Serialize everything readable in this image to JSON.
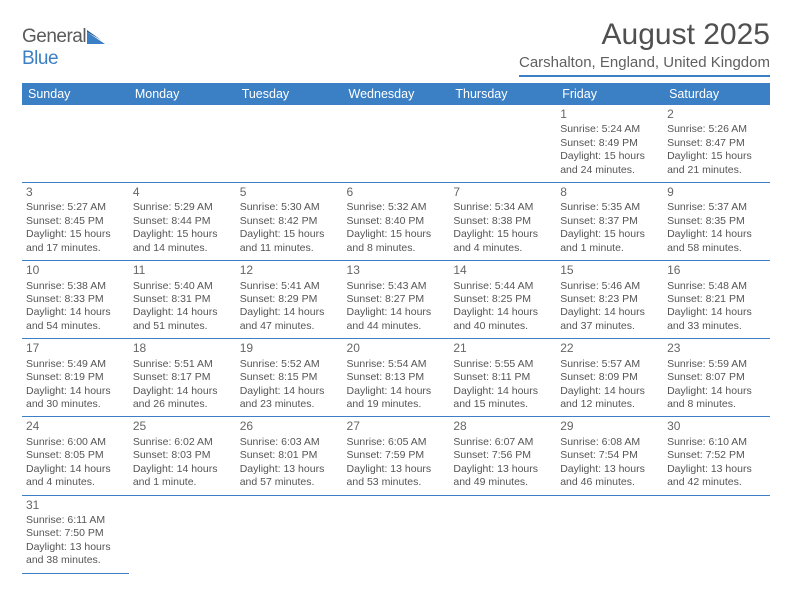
{
  "logo": {
    "part1": "General",
    "part2": "Blue"
  },
  "title": "August 2025",
  "location": "Carshalton, England, United Kingdom",
  "colors": {
    "header_bg": "#3b7fc4",
    "header_text": "#ffffff",
    "rule": "#3b7fc4",
    "body_text": "#555555",
    "title_text": "#505050",
    "background": "#ffffff"
  },
  "fonts": {
    "base": "Arial",
    "title_size_pt": 22,
    "body_size_pt": 8,
    "header_size_pt": 9
  },
  "weekdays": [
    "Sunday",
    "Monday",
    "Tuesday",
    "Wednesday",
    "Thursday",
    "Friday",
    "Saturday"
  ],
  "weeks": [
    [
      null,
      null,
      null,
      null,
      null,
      {
        "n": "1",
        "l1": "Sunrise: 5:24 AM",
        "l2": "Sunset: 8:49 PM",
        "l3": "Daylight: 15 hours",
        "l4": "and 24 minutes."
      },
      {
        "n": "2",
        "l1": "Sunrise: 5:26 AM",
        "l2": "Sunset: 8:47 PM",
        "l3": "Daylight: 15 hours",
        "l4": "and 21 minutes."
      }
    ],
    [
      {
        "n": "3",
        "l1": "Sunrise: 5:27 AM",
        "l2": "Sunset: 8:45 PM",
        "l3": "Daylight: 15 hours",
        "l4": "and 17 minutes."
      },
      {
        "n": "4",
        "l1": "Sunrise: 5:29 AM",
        "l2": "Sunset: 8:44 PM",
        "l3": "Daylight: 15 hours",
        "l4": "and 14 minutes."
      },
      {
        "n": "5",
        "l1": "Sunrise: 5:30 AM",
        "l2": "Sunset: 8:42 PM",
        "l3": "Daylight: 15 hours",
        "l4": "and 11 minutes."
      },
      {
        "n": "6",
        "l1": "Sunrise: 5:32 AM",
        "l2": "Sunset: 8:40 PM",
        "l3": "Daylight: 15 hours",
        "l4": "and 8 minutes."
      },
      {
        "n": "7",
        "l1": "Sunrise: 5:34 AM",
        "l2": "Sunset: 8:38 PM",
        "l3": "Daylight: 15 hours",
        "l4": "and 4 minutes."
      },
      {
        "n": "8",
        "l1": "Sunrise: 5:35 AM",
        "l2": "Sunset: 8:37 PM",
        "l3": "Daylight: 15 hours",
        "l4": "and 1 minute."
      },
      {
        "n": "9",
        "l1": "Sunrise: 5:37 AM",
        "l2": "Sunset: 8:35 PM",
        "l3": "Daylight: 14 hours",
        "l4": "and 58 minutes."
      }
    ],
    [
      {
        "n": "10",
        "l1": "Sunrise: 5:38 AM",
        "l2": "Sunset: 8:33 PM",
        "l3": "Daylight: 14 hours",
        "l4": "and 54 minutes."
      },
      {
        "n": "11",
        "l1": "Sunrise: 5:40 AM",
        "l2": "Sunset: 8:31 PM",
        "l3": "Daylight: 14 hours",
        "l4": "and 51 minutes."
      },
      {
        "n": "12",
        "l1": "Sunrise: 5:41 AM",
        "l2": "Sunset: 8:29 PM",
        "l3": "Daylight: 14 hours",
        "l4": "and 47 minutes."
      },
      {
        "n": "13",
        "l1": "Sunrise: 5:43 AM",
        "l2": "Sunset: 8:27 PM",
        "l3": "Daylight: 14 hours",
        "l4": "and 44 minutes."
      },
      {
        "n": "14",
        "l1": "Sunrise: 5:44 AM",
        "l2": "Sunset: 8:25 PM",
        "l3": "Daylight: 14 hours",
        "l4": "and 40 minutes."
      },
      {
        "n": "15",
        "l1": "Sunrise: 5:46 AM",
        "l2": "Sunset: 8:23 PM",
        "l3": "Daylight: 14 hours",
        "l4": "and 37 minutes."
      },
      {
        "n": "16",
        "l1": "Sunrise: 5:48 AM",
        "l2": "Sunset: 8:21 PM",
        "l3": "Daylight: 14 hours",
        "l4": "and 33 minutes."
      }
    ],
    [
      {
        "n": "17",
        "l1": "Sunrise: 5:49 AM",
        "l2": "Sunset: 8:19 PM",
        "l3": "Daylight: 14 hours",
        "l4": "and 30 minutes."
      },
      {
        "n": "18",
        "l1": "Sunrise: 5:51 AM",
        "l2": "Sunset: 8:17 PM",
        "l3": "Daylight: 14 hours",
        "l4": "and 26 minutes."
      },
      {
        "n": "19",
        "l1": "Sunrise: 5:52 AM",
        "l2": "Sunset: 8:15 PM",
        "l3": "Daylight: 14 hours",
        "l4": "and 23 minutes."
      },
      {
        "n": "20",
        "l1": "Sunrise: 5:54 AM",
        "l2": "Sunset: 8:13 PM",
        "l3": "Daylight: 14 hours",
        "l4": "and 19 minutes."
      },
      {
        "n": "21",
        "l1": "Sunrise: 5:55 AM",
        "l2": "Sunset: 8:11 PM",
        "l3": "Daylight: 14 hours",
        "l4": "and 15 minutes."
      },
      {
        "n": "22",
        "l1": "Sunrise: 5:57 AM",
        "l2": "Sunset: 8:09 PM",
        "l3": "Daylight: 14 hours",
        "l4": "and 12 minutes."
      },
      {
        "n": "23",
        "l1": "Sunrise: 5:59 AM",
        "l2": "Sunset: 8:07 PM",
        "l3": "Daylight: 14 hours",
        "l4": "and 8 minutes."
      }
    ],
    [
      {
        "n": "24",
        "l1": "Sunrise: 6:00 AM",
        "l2": "Sunset: 8:05 PM",
        "l3": "Daylight: 14 hours",
        "l4": "and 4 minutes."
      },
      {
        "n": "25",
        "l1": "Sunrise: 6:02 AM",
        "l2": "Sunset: 8:03 PM",
        "l3": "Daylight: 14 hours",
        "l4": "and 1 minute."
      },
      {
        "n": "26",
        "l1": "Sunrise: 6:03 AM",
        "l2": "Sunset: 8:01 PM",
        "l3": "Daylight: 13 hours",
        "l4": "and 57 minutes."
      },
      {
        "n": "27",
        "l1": "Sunrise: 6:05 AM",
        "l2": "Sunset: 7:59 PM",
        "l3": "Daylight: 13 hours",
        "l4": "and 53 minutes."
      },
      {
        "n": "28",
        "l1": "Sunrise: 6:07 AM",
        "l2": "Sunset: 7:56 PM",
        "l3": "Daylight: 13 hours",
        "l4": "and 49 minutes."
      },
      {
        "n": "29",
        "l1": "Sunrise: 6:08 AM",
        "l2": "Sunset: 7:54 PM",
        "l3": "Daylight: 13 hours",
        "l4": "and 46 minutes."
      },
      {
        "n": "30",
        "l1": "Sunrise: 6:10 AM",
        "l2": "Sunset: 7:52 PM",
        "l3": "Daylight: 13 hours",
        "l4": "and 42 minutes."
      }
    ],
    [
      {
        "n": "31",
        "l1": "Sunrise: 6:11 AM",
        "l2": "Sunset: 7:50 PM",
        "l3": "Daylight: 13 hours",
        "l4": "and 38 minutes."
      },
      null,
      null,
      null,
      null,
      null,
      null
    ]
  ]
}
